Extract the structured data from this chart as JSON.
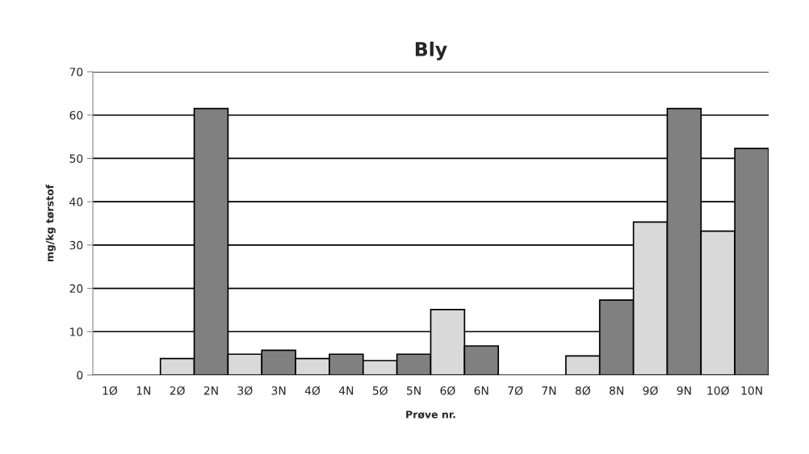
{
  "chart_data": {
    "type": "bar",
    "title": "Bly",
    "xlabel": "Prøve nr.",
    "ylabel": "mg/kg tørstof",
    "categories": [
      "1Ø",
      "1N",
      "2Ø",
      "2N",
      "3Ø",
      "3N",
      "4Ø",
      "4N",
      "5Ø",
      "5N",
      "6Ø",
      "6N",
      "7Ø",
      "7N",
      "8Ø",
      "8N",
      "9Ø",
      "9N",
      "10Ø",
      "10N"
    ],
    "values": [
      null,
      null,
      3.8,
      61.5,
      4.8,
      5.7,
      3.8,
      4.8,
      3.3,
      4.8,
      15.1,
      6.7,
      null,
      null,
      4.4,
      17.3,
      35.3,
      61.5,
      33.2,
      52.3
    ],
    "colors": [
      "#d9d9d9",
      "#808080",
      "#d9d9d9",
      "#808080",
      "#d9d9d9",
      "#808080",
      "#d9d9d9",
      "#808080",
      "#d9d9d9",
      "#808080",
      "#d9d9d9",
      "#808080",
      "#d9d9d9",
      "#808080",
      "#d9d9d9",
      "#808080",
      "#d9d9d9",
      "#808080",
      "#d9d9d9",
      "#808080"
    ],
    "ylim": [
      0,
      70
    ],
    "yticks": [
      0,
      10,
      20,
      30,
      40,
      50,
      60,
      70
    ],
    "grid": "y",
    "legend": false
  }
}
